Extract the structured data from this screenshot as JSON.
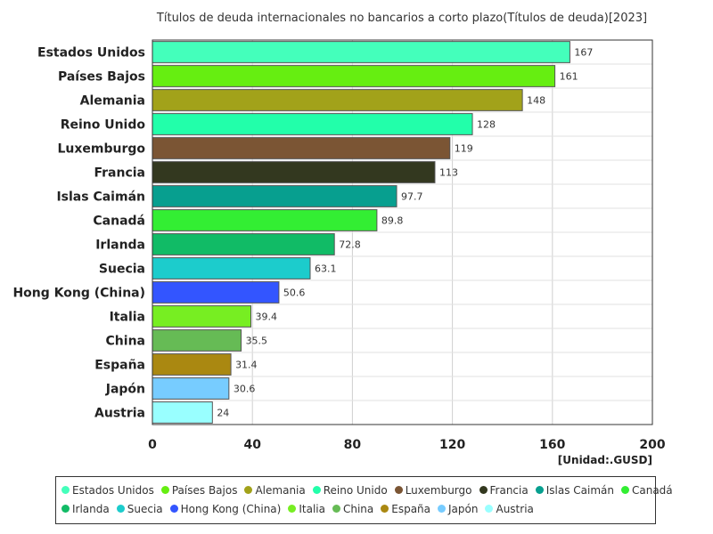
{
  "chart_data": {
    "type": "bar",
    "orientation": "horizontal",
    "title": "Títulos de deuda internacionales no bancarios a corto plazo(Títulos de deuda)[2023]",
    "unit_label": "[Unidad:.GUSD]",
    "xlim": [
      0,
      200
    ],
    "x_ticks": [
      "0",
      "40",
      "80",
      "120",
      "160",
      "200"
    ],
    "grid": true,
    "legend_position": "bottom",
    "categories": [
      "Estados Unidos",
      "Países Bajos",
      "Alemania",
      "Reino Unido",
      "Luxemburgo",
      "Francia",
      "Islas Caimán",
      "Canadá",
      "Irlanda",
      "Suecia",
      "Hong Kong (China)",
      "Italia",
      "China",
      "España",
      "Japón",
      "Austria"
    ],
    "values": [
      167,
      161,
      148,
      128,
      119,
      113,
      97.7,
      89.8,
      72.8,
      63.1,
      50.6,
      39.4,
      35.5,
      31.4,
      30.6,
      24
    ],
    "value_labels": [
      "167",
      "161",
      "148",
      "128",
      "119",
      "113",
      "97.7",
      "89.8",
      "72.8",
      "63.1",
      "50.6",
      "39.4",
      "35.5",
      "31.4",
      "30.6",
      "24"
    ],
    "colors": [
      "#44ffbb",
      "#66ee11",
      "#a2a21a",
      "#22ffaa",
      "#7b5534",
      "#33381f",
      "#079f8f",
      "#33ee33",
      "#11bb66",
      "#1ccccc",
      "#3355ff",
      "#77ee22",
      "#66bb55",
      "#aa8811",
      "#77ccff",
      "#99ffff"
    ]
  }
}
